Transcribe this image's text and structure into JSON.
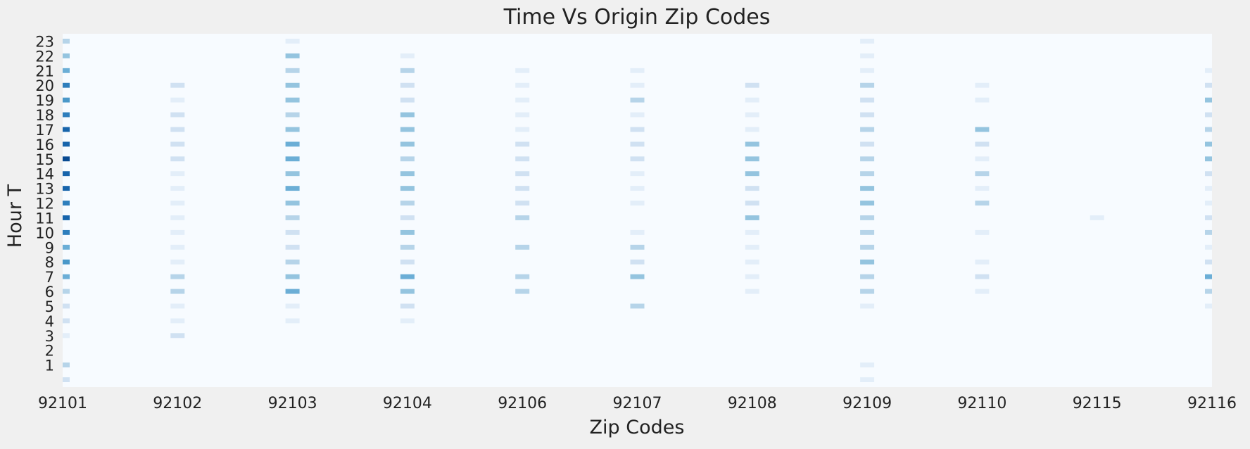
{
  "chart_data": {
    "type": "heatmap",
    "title": "Time Vs Origin Zip Codes",
    "xlabel": "Zip Codes",
    "ylabel": "Hour T",
    "x_categories": [
      "92101",
      "92102",
      "92103",
      "92104",
      "92106",
      "92107",
      "92108",
      "92109",
      "92110",
      "92115",
      "92116"
    ],
    "y_ticks": [
      1,
      2,
      3,
      4,
      5,
      6,
      7,
      8,
      9,
      10,
      11,
      12,
      13,
      14,
      15,
      16,
      17,
      18,
      19,
      20,
      21,
      22,
      23
    ],
    "hours": [
      0,
      1,
      2,
      3,
      4,
      5,
      6,
      7,
      8,
      9,
      10,
      11,
      12,
      13,
      14,
      15,
      16,
      17,
      18,
      19,
      20,
      21,
      22,
      23
    ],
    "colormap": "Blues",
    "value_range": [
      0,
      10
    ],
    "grid": false,
    "values": [
      [
        2,
        0,
        0,
        0,
        0,
        0,
        0,
        1,
        0,
        0,
        0
      ],
      [
        3,
        0,
        0,
        0,
        0,
        0,
        0,
        1,
        0,
        0,
        0
      ],
      [
        0,
        0,
        0,
        0,
        0,
        0,
        0,
        0,
        0,
        0,
        0
      ],
      [
        1,
        2,
        0,
        0,
        0,
        0,
        0,
        0,
        0,
        0,
        0
      ],
      [
        2,
        1,
        1,
        1,
        0,
        0,
        0,
        0,
        0,
        0,
        0
      ],
      [
        2,
        1,
        1,
        2,
        0,
        3,
        0,
        1,
        0,
        0,
        1
      ],
      [
        3,
        3,
        5,
        4,
        3,
        0,
        1,
        3,
        1,
        0,
        3
      ],
      [
        5,
        3,
        4,
        5,
        3,
        4,
        1,
        3,
        2,
        0,
        5
      ],
      [
        6,
        1,
        3,
        2,
        0,
        2,
        1,
        4,
        1,
        0,
        2
      ],
      [
        5,
        1,
        2,
        3,
        3,
        3,
        1,
        3,
        0,
        0,
        1
      ],
      [
        7,
        1,
        2,
        4,
        0,
        1,
        1,
        3,
        1,
        0,
        3
      ],
      [
        8,
        1,
        3,
        2,
        3,
        0,
        4,
        3,
        0,
        1,
        2
      ],
      [
        7,
        1,
        4,
        3,
        2,
        1,
        2,
        4,
        3,
        0,
        1
      ],
      [
        8,
        1,
        5,
        4,
        2,
        1,
        2,
        4,
        1,
        0,
        1
      ],
      [
        8,
        1,
        4,
        4,
        2,
        1,
        4,
        3,
        3,
        0,
        2
      ],
      [
        9,
        2,
        5,
        3,
        2,
        2,
        4,
        3,
        1,
        0,
        4
      ],
      [
        8,
        2,
        5,
        4,
        2,
        2,
        4,
        2,
        2,
        0,
        4
      ],
      [
        8,
        2,
        4,
        4,
        1,
        2,
        1,
        3,
        4,
        0,
        3
      ],
      [
        7,
        2,
        3,
        4,
        1,
        1,
        1,
        2,
        0,
        0,
        2
      ],
      [
        6,
        1,
        4,
        2,
        1,
        3,
        1,
        2,
        1,
        0,
        4
      ],
      [
        7,
        2,
        4,
        2,
        1,
        1,
        2,
        3,
        1,
        0,
        2
      ],
      [
        5,
        0,
        3,
        3,
        1,
        1,
        0,
        1,
        0,
        0,
        1
      ],
      [
        4,
        0,
        4,
        1,
        0,
        0,
        0,
        1,
        0,
        0,
        0
      ],
      [
        3,
        0,
        1,
        0,
        0,
        0,
        0,
        1,
        0,
        0,
        0
      ]
    ]
  }
}
